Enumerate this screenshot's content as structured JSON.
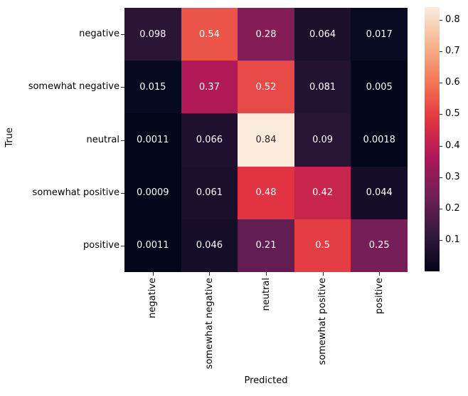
{
  "chart_data": {
    "type": "heatmap",
    "title": "",
    "xlabel": "Predicted",
    "ylabel": "True",
    "x_categories": [
      "negative",
      "somewhat negative",
      "neutral",
      "somewhat positive",
      "positive"
    ],
    "y_categories": [
      "negative",
      "somewhat negative",
      "neutral",
      "somewhat positive",
      "positive"
    ],
    "values": [
      [
        0.098,
        0.54,
        0.28,
        0.064,
        0.017
      ],
      [
        0.015,
        0.37,
        0.52,
        0.081,
        0.005
      ],
      [
        0.0011,
        0.066,
        0.84,
        0.09,
        0.0018
      ],
      [
        0.0009,
        0.061,
        0.48,
        0.42,
        0.044
      ],
      [
        0.0011,
        0.046,
        0.21,
        0.5,
        0.25
      ]
    ],
    "cell_labels": [
      [
        "0.098",
        "0.54",
        "0.28",
        "0.064",
        "0.017"
      ],
      [
        "0.015",
        "0.37",
        "0.52",
        "0.081",
        "0.005"
      ],
      [
        "0.0011",
        "0.066",
        "0.84",
        "0.09",
        "0.0018"
      ],
      [
        "0.0009",
        "0.061",
        "0.48",
        "0.42",
        "0.044"
      ],
      [
        "0.0011",
        "0.046",
        "0.21",
        "0.5",
        "0.25"
      ]
    ],
    "cell_colors": [
      [
        "#2B1537",
        "#EA5449",
        "#841C58",
        "#1D102D",
        "#080A21"
      ],
      [
        "#070920",
        "#B11957",
        "#E74947",
        "#241232",
        "#04061B"
      ],
      [
        "#03051A",
        "#1E102E",
        "#FAEBDD",
        "#281435",
        "#03051A"
      ],
      [
        "#03051A",
        "#1C0F2C",
        "#E13342",
        "#C7254E",
        "#150C27"
      ],
      [
        "#03051A",
        "#160D28",
        "#611D51",
        "#E43E44",
        "#751E57"
      ]
    ],
    "cell_text_colors": [
      [
        "#ffffff",
        "#ffffff",
        "#ffffff",
        "#ffffff",
        "#ffffff"
      ],
      [
        "#ffffff",
        "#ffffff",
        "#ffffff",
        "#ffffff",
        "#ffffff"
      ],
      [
        "#ffffff",
        "#ffffff",
        "#262626",
        "#ffffff",
        "#ffffff"
      ],
      [
        "#ffffff",
        "#ffffff",
        "#ffffff",
        "#ffffff",
        "#ffffff"
      ],
      [
        "#ffffff",
        "#ffffff",
        "#ffffff",
        "#ffffff",
        "#ffffff"
      ]
    ],
    "grid": false,
    "colormap_name": "rocket",
    "colorbar": {
      "position": "right",
      "vmin": 0.0009,
      "vmax": 0.84,
      "tick_values": [
        0.1,
        0.2,
        0.3,
        0.4,
        0.5,
        0.6,
        0.7,
        0.8
      ],
      "tick_labels": [
        "0.1",
        "0.2",
        "0.3",
        "0.4",
        "0.5",
        "0.6",
        "0.7",
        "0.8"
      ],
      "gradient_stops": [
        {
          "pos": 0.0,
          "color": "#03051A"
        },
        {
          "pos": 14.3,
          "color": "#35193E"
        },
        {
          "pos": 28.6,
          "color": "#701F57"
        },
        {
          "pos": 42.9,
          "color": "#AD1759"
        },
        {
          "pos": 57.1,
          "color": "#E13342"
        },
        {
          "pos": 71.4,
          "color": "#F37651"
        },
        {
          "pos": 85.7,
          "color": "#F6B48F"
        },
        {
          "pos": 100.0,
          "color": "#FAEBDD"
        }
      ]
    }
  }
}
